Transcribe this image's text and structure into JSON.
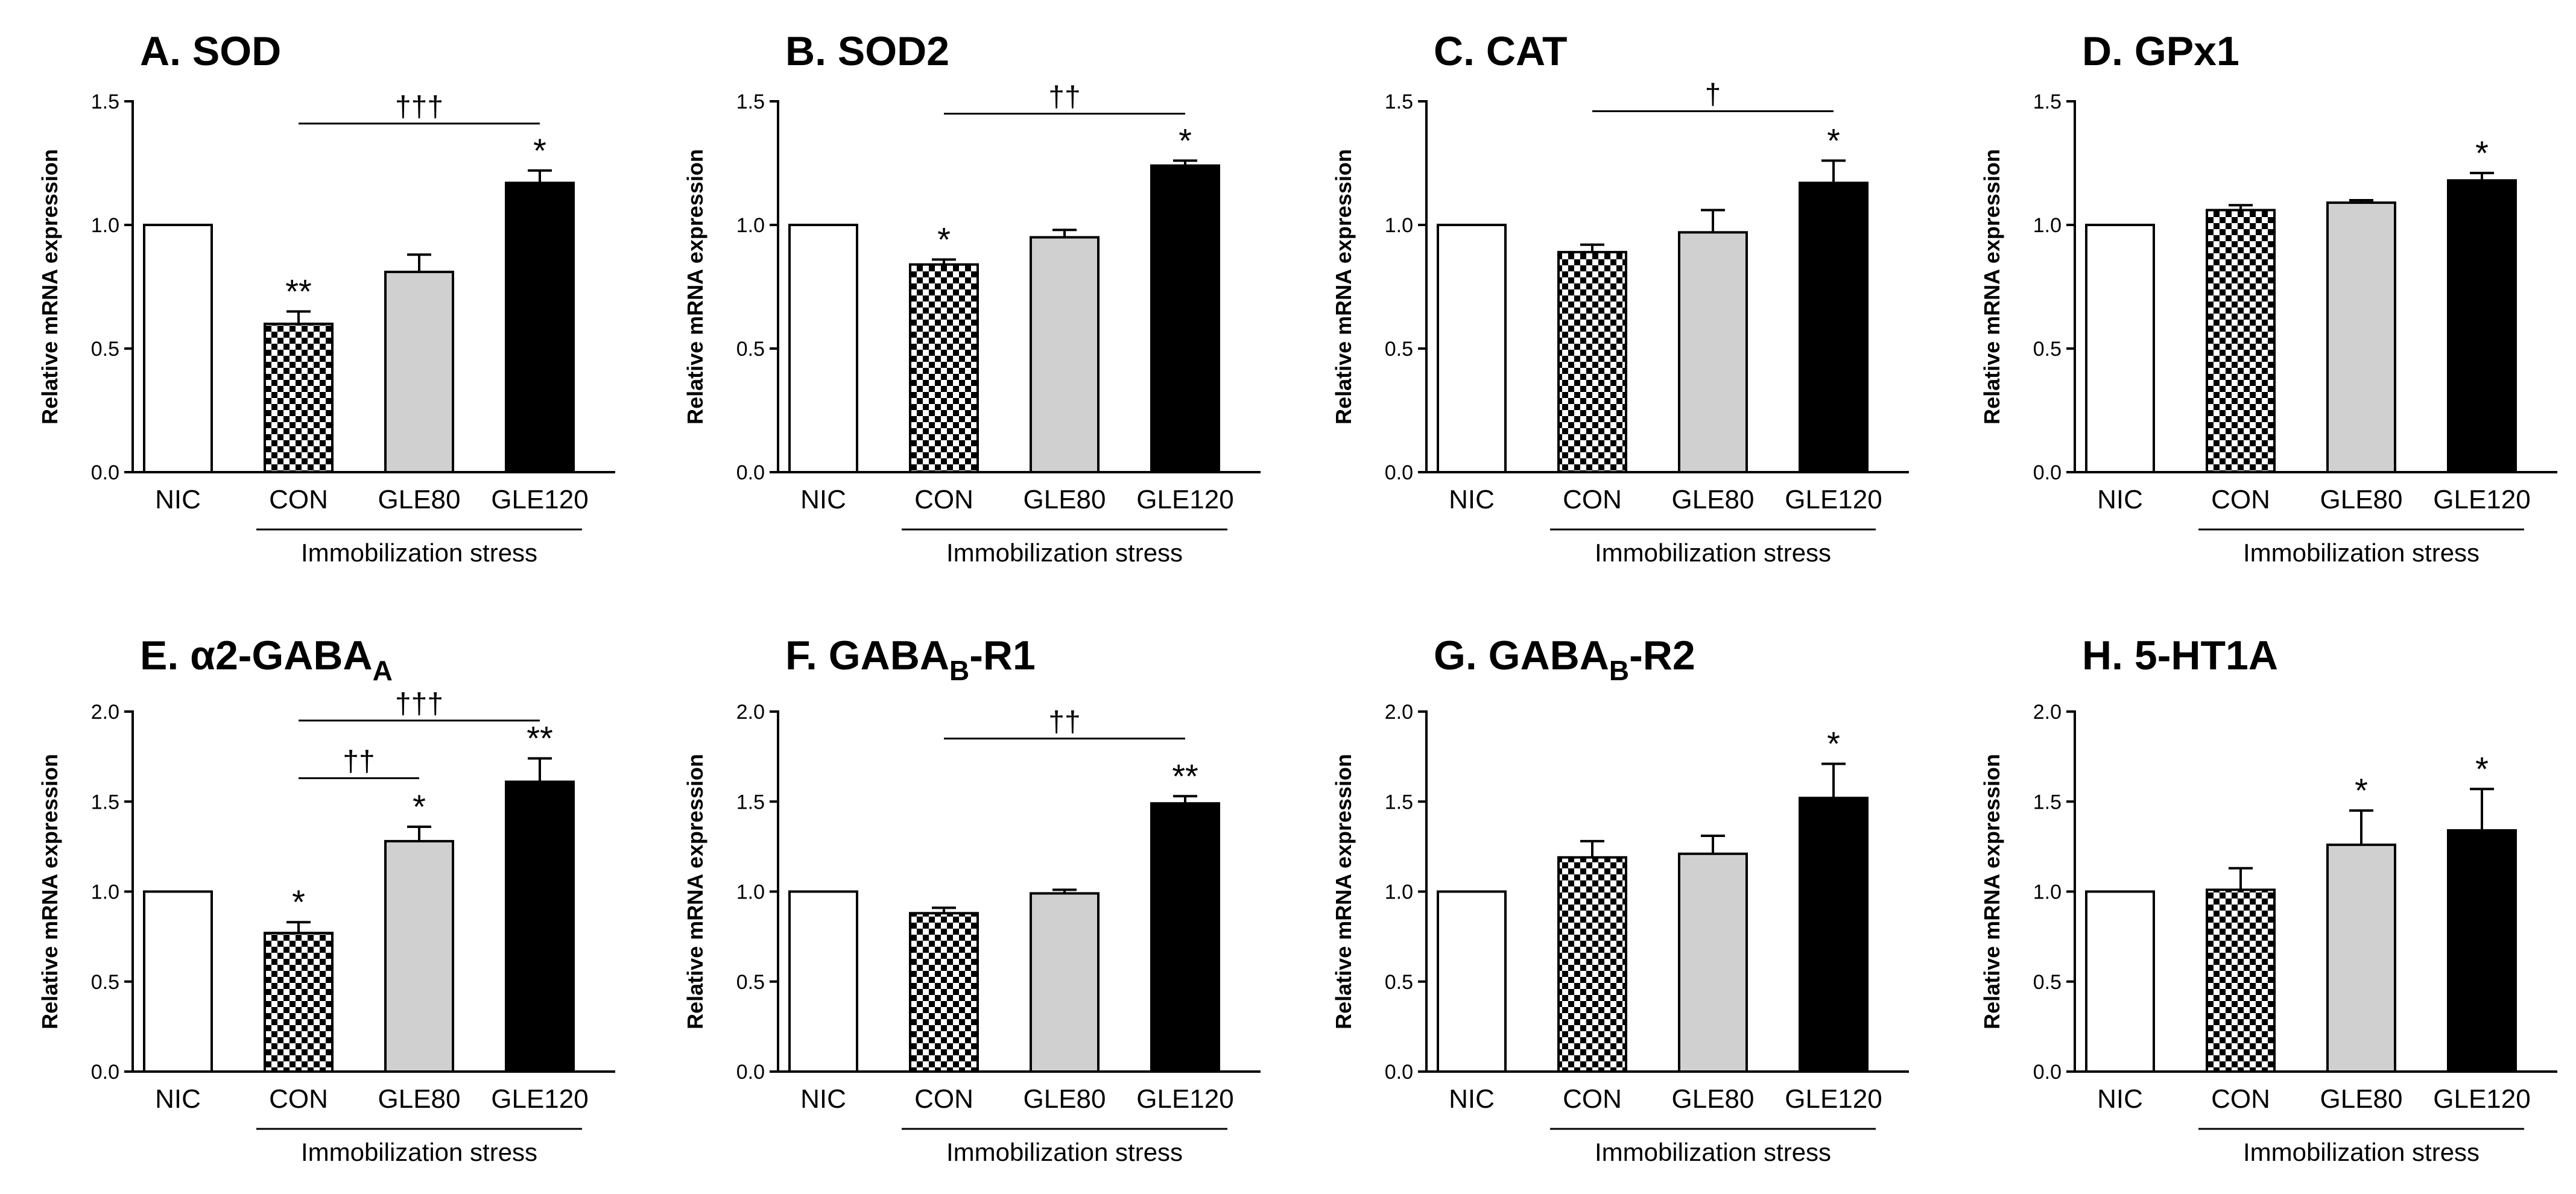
{
  "figure": {
    "group_label": "Immobilization stress",
    "categories": [
      "NIC",
      "CON",
      "GLE80",
      "GLE120"
    ],
    "ylabel": "Relative mRNA expression"
  },
  "styles": {
    "bar_fills": [
      "#ffffff",
      "checker",
      "#d0d0d0",
      "#000000"
    ]
  },
  "chart_data": [
    {
      "type": "bar",
      "panel": "A",
      "title": "A. SOD",
      "title_parts": {
        "main": "A. SOD",
        "sub": "",
        "tail": ""
      },
      "xlabel": "Immobilization stress",
      "ylabel": "Relative mRNA expression",
      "categories": [
        "NIC",
        "CON",
        "GLE80",
        "GLE120"
      ],
      "values": [
        1.0,
        0.6,
        0.81,
        1.17
      ],
      "errors": [
        0,
        0.05,
        0.07,
        0.05
      ],
      "sig": [
        "",
        "**",
        "",
        "*"
      ],
      "ylim": [
        0,
        1.5
      ],
      "yticks": [
        "0.0",
        "0.5",
        "1.0",
        "1.5"
      ],
      "brackets": [
        {
          "from": 1,
          "to": 3,
          "label": "†††",
          "y": 1.41
        }
      ]
    },
    {
      "type": "bar",
      "panel": "B",
      "title": "B. SOD2",
      "title_parts": {
        "main": "B. SOD2",
        "sub": "",
        "tail": ""
      },
      "xlabel": "Immobilization stress",
      "ylabel": "Relative mRNA expression",
      "categories": [
        "NIC",
        "CON",
        "GLE80",
        "GLE120"
      ],
      "values": [
        1.0,
        0.84,
        0.95,
        1.24
      ],
      "errors": [
        0,
        0.02,
        0.03,
        0.02
      ],
      "sig": [
        "",
        "*",
        "",
        "*"
      ],
      "ylim": [
        0,
        1.5
      ],
      "yticks": [
        "0.0",
        "0.5",
        "1.0",
        "1.5"
      ],
      "brackets": [
        {
          "from": 1,
          "to": 3,
          "label": "††",
          "y": 1.45
        }
      ]
    },
    {
      "type": "bar",
      "panel": "C",
      "title": "C. CAT",
      "title_parts": {
        "main": "C. CAT",
        "sub": "",
        "tail": ""
      },
      "xlabel": "Immobilization stress",
      "ylabel": "Relative mRNA expression",
      "categories": [
        "NIC",
        "CON",
        "GLE80",
        "GLE120"
      ],
      "values": [
        1.0,
        0.89,
        0.97,
        1.17
      ],
      "errors": [
        0,
        0.03,
        0.09,
        0.09
      ],
      "sig": [
        "",
        "",
        "",
        "*"
      ],
      "ylim": [
        0,
        1.5
      ],
      "yticks": [
        "0.0",
        "0.5",
        "1.0",
        "1.5"
      ],
      "brackets": [
        {
          "from": 1,
          "to": 3,
          "label": "†",
          "y": 1.46
        }
      ]
    },
    {
      "type": "bar",
      "panel": "D",
      "title": "D. GPx1",
      "title_parts": {
        "main": "D. GPx1",
        "sub": "",
        "tail": ""
      },
      "xlabel": "Immobilization stress",
      "ylabel": "Relative mRNA expression",
      "categories": [
        "NIC",
        "CON",
        "GLE80",
        "GLE120"
      ],
      "values": [
        1.0,
        1.06,
        1.09,
        1.18
      ],
      "errors": [
        0,
        0.02,
        0.01,
        0.03
      ],
      "sig": [
        "",
        "",
        "",
        "*"
      ],
      "ylim": [
        0,
        1.5
      ],
      "yticks": [
        "0.0",
        "0.5",
        "1.0",
        "1.5"
      ],
      "brackets": []
    },
    {
      "type": "bar",
      "panel": "E",
      "title": "E. α2-GABAA",
      "title_parts": {
        "main": "E. α2-GABA",
        "sub": "A",
        "tail": ""
      },
      "xlabel": "Immobilization stress",
      "ylabel": "Relative mRNA expression",
      "categories": [
        "NIC",
        "CON",
        "GLE80",
        "GLE120"
      ],
      "values": [
        1.0,
        0.77,
        1.28,
        1.61
      ],
      "errors": [
        0,
        0.06,
        0.08,
        0.13
      ],
      "sig": [
        "",
        "*",
        "*",
        "**"
      ],
      "ylim": [
        0,
        2.0
      ],
      "yticks": [
        "0.0",
        "0.5",
        "1.0",
        "1.5",
        "2.0"
      ],
      "brackets": [
        {
          "from": 1,
          "to": 3,
          "label": "†††",
          "y": 1.95
        },
        {
          "from": 1,
          "to": 2,
          "label": "††",
          "y": 1.63
        }
      ]
    },
    {
      "type": "bar",
      "panel": "F",
      "title": "F. GABAB-R1",
      "title_parts": {
        "main": "F. GABA",
        "sub": "B",
        "tail": "-R1"
      },
      "xlabel": "Immobilization stress",
      "ylabel": "Relative mRNA expression",
      "categories": [
        "NIC",
        "CON",
        "GLE80",
        "GLE120"
      ],
      "values": [
        1.0,
        0.88,
        0.99,
        1.49
      ],
      "errors": [
        0,
        0.03,
        0.02,
        0.04
      ],
      "sig": [
        "",
        "",
        "",
        "**"
      ],
      "ylim": [
        0,
        2.0
      ],
      "yticks": [
        "0.0",
        "0.5",
        "1.0",
        "1.5",
        "2.0"
      ],
      "brackets": [
        {
          "from": 1,
          "to": 3,
          "label": "††",
          "y": 1.85
        }
      ]
    },
    {
      "type": "bar",
      "panel": "G",
      "title": "G. GABAB-R2",
      "title_parts": {
        "main": "G. GABA",
        "sub": "B",
        "tail": "-R2"
      },
      "xlabel": "Immobilization stress",
      "ylabel": "Relative mRNA expression",
      "categories": [
        "NIC",
        "CON",
        "GLE80",
        "GLE120"
      ],
      "values": [
        1.0,
        1.19,
        1.21,
        1.52
      ],
      "errors": [
        0,
        0.09,
        0.1,
        0.19
      ],
      "sig": [
        "",
        "",
        "",
        "*"
      ],
      "ylim": [
        0,
        2.0
      ],
      "yticks": [
        "0.0",
        "0.5",
        "1.0",
        "1.5",
        "2.0"
      ],
      "brackets": []
    },
    {
      "type": "bar",
      "panel": "H",
      "title": "H. 5-HT1A",
      "title_parts": {
        "main": "H. 5-HT1A",
        "sub": "",
        "tail": ""
      },
      "xlabel": "Immobilization stress",
      "ylabel": "Relative mRNA expression",
      "categories": [
        "NIC",
        "CON",
        "GLE80",
        "GLE120"
      ],
      "values": [
        1.0,
        1.01,
        1.26,
        1.34
      ],
      "errors": [
        0,
        0.12,
        0.19,
        0.23
      ],
      "sig": [
        "",
        "",
        "*",
        "*"
      ],
      "ylim": [
        0,
        2.0
      ],
      "yticks": [
        "0.0",
        "0.5",
        "1.0",
        "1.5",
        "2.0"
      ],
      "brackets": []
    }
  ]
}
